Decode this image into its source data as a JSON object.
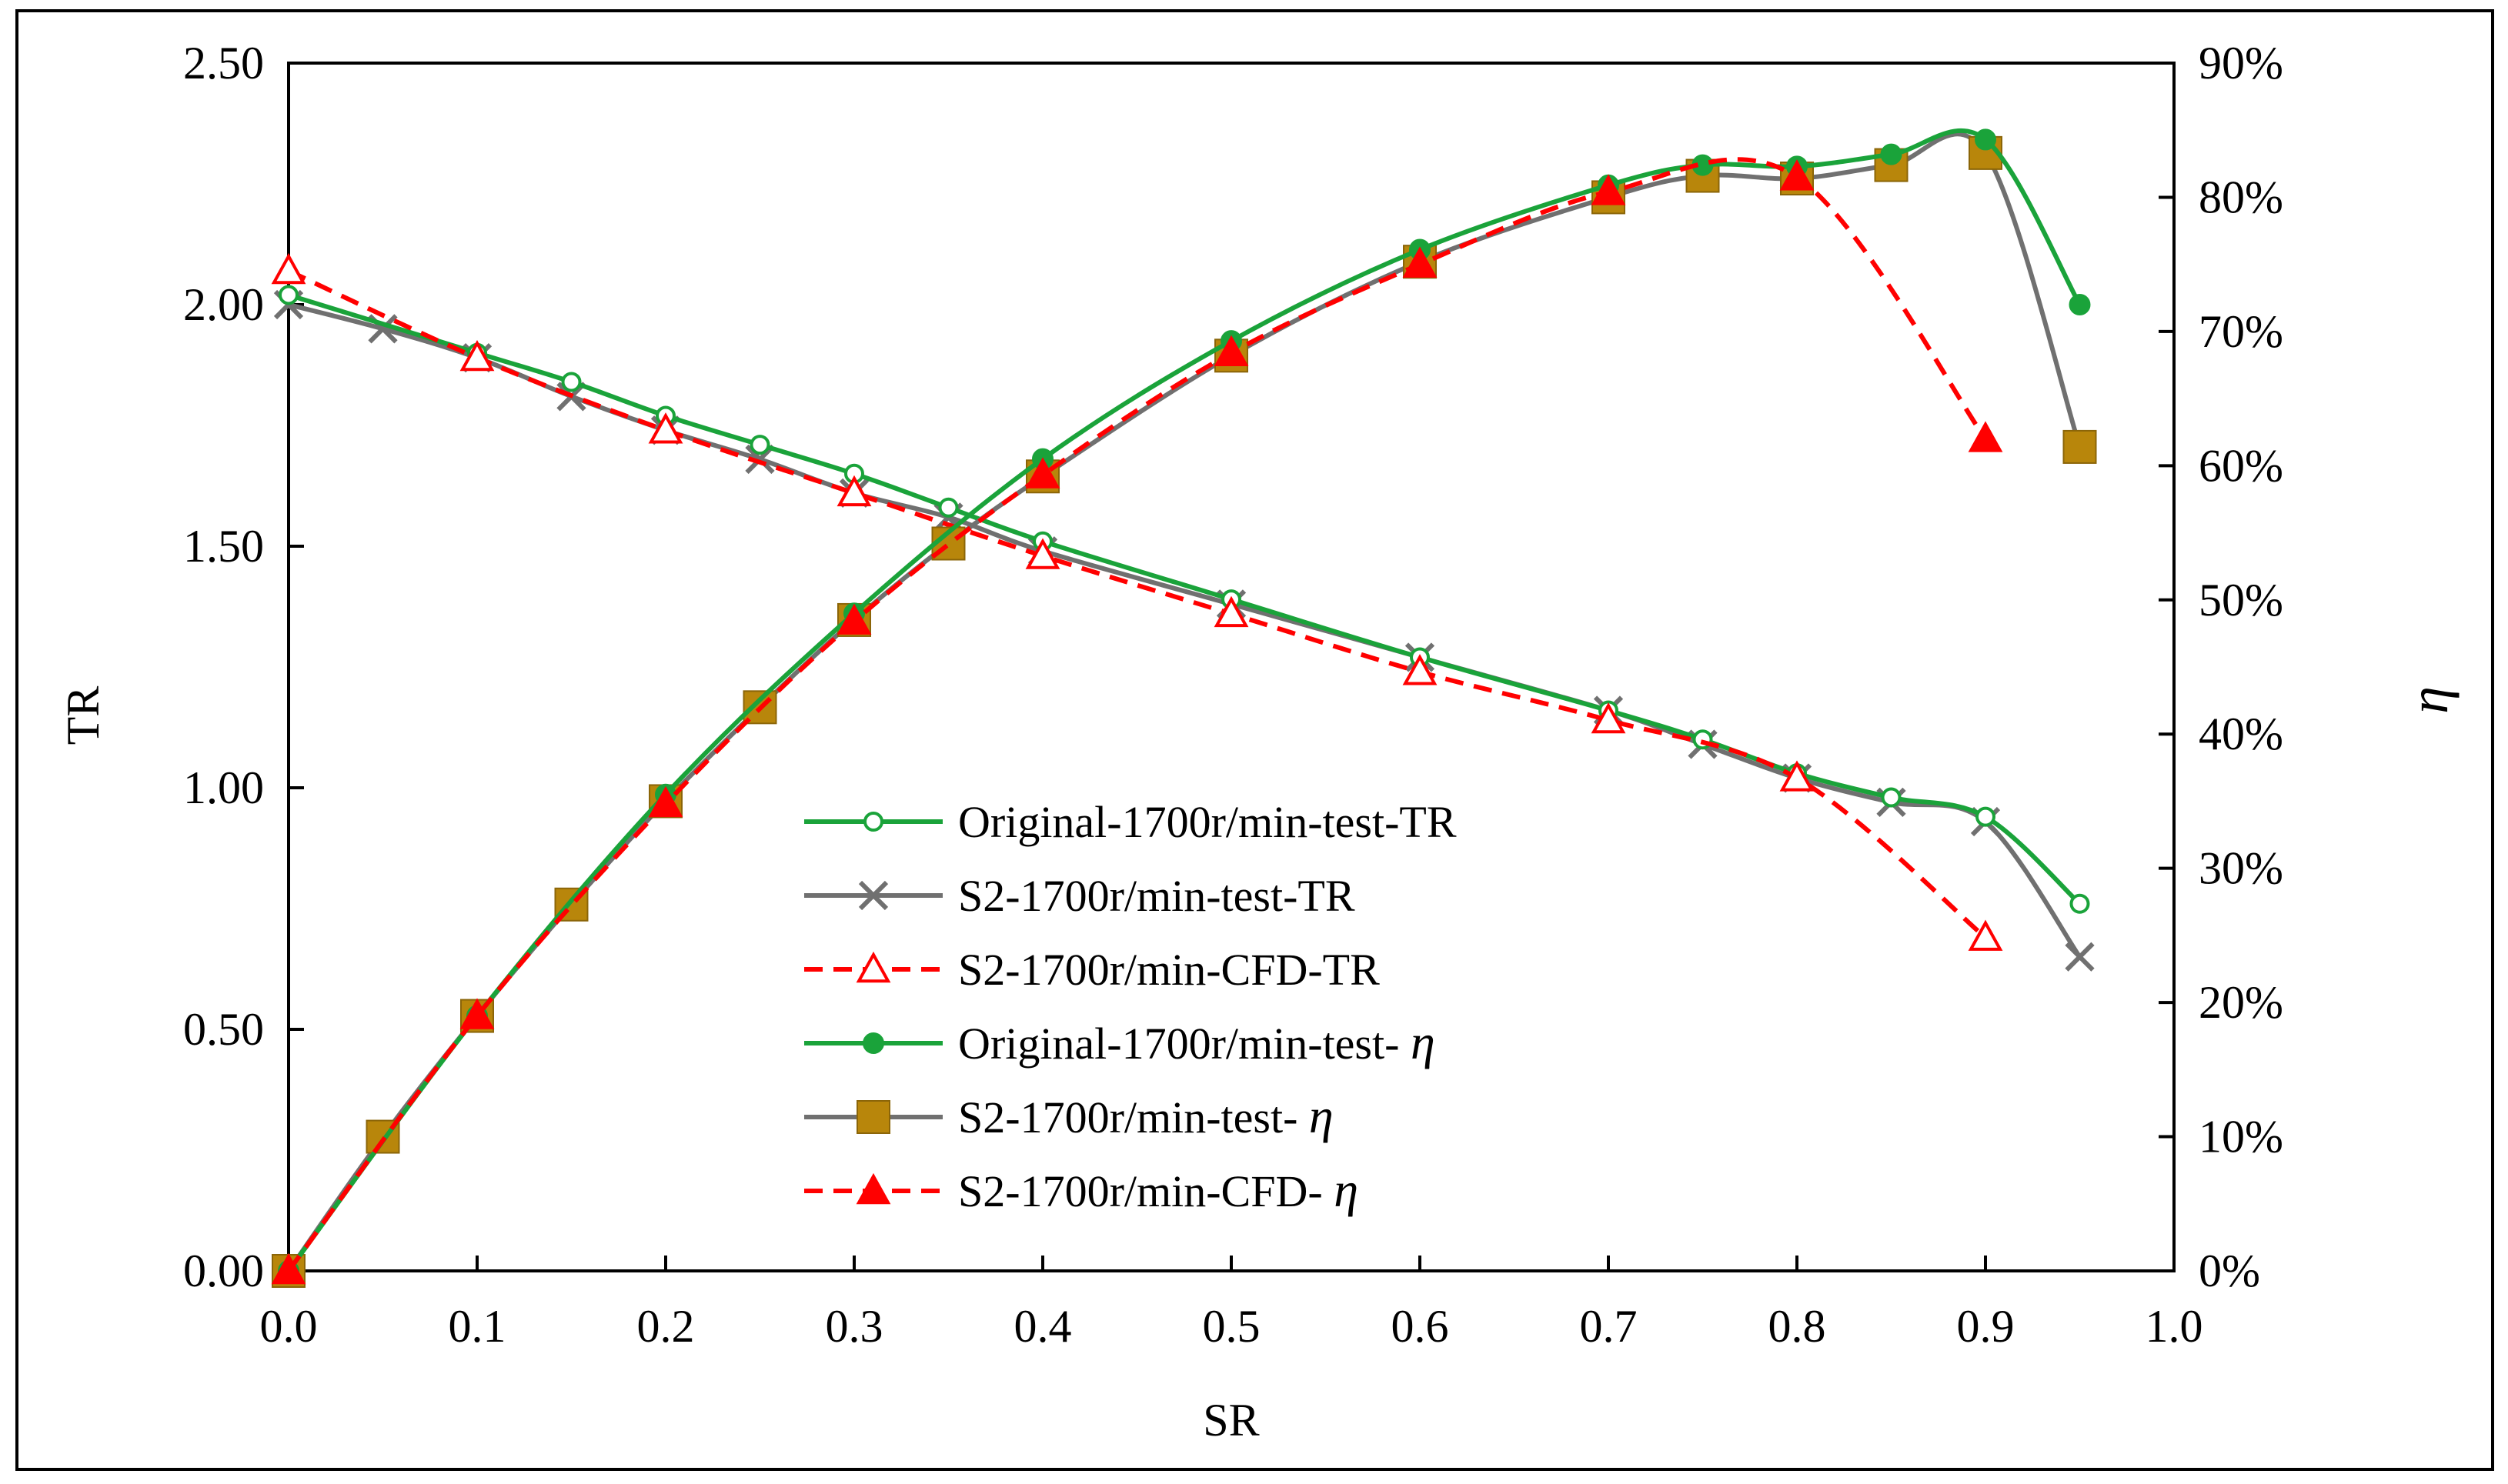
{
  "chart_data": {
    "type": "line",
    "title": "",
    "xlabel": "SR",
    "ylabel": "TR",
    "y2label": "η",
    "xlim": [
      0.0,
      1.0
    ],
    "ylim": [
      0.0,
      2.5
    ],
    "y2lim": [
      0,
      90
    ],
    "x_ticks": [
      "0.0",
      "0.1",
      "0.2",
      "0.3",
      "0.4",
      "0.5",
      "0.6",
      "0.7",
      "0.8",
      "0.9",
      "1.0"
    ],
    "y_ticks": [
      "0.00",
      "0.50",
      "1.00",
      "1.50",
      "2.00",
      "2.50"
    ],
    "y2_ticks": [
      "0%",
      "10%",
      "20%",
      "30%",
      "40%",
      "50%",
      "60%",
      "70%",
      "80%",
      "90%"
    ],
    "grid": false,
    "legend_position": "center-bottom",
    "series": [
      {
        "name": "Original-1700r/min-test-TR",
        "legend_text": "Original-1700r/min-test-TR",
        "legend_eta": "",
        "axis": "left",
        "color": "#1aa33a",
        "dash": "solid",
        "marker": "open-circle",
        "x": [
          0.0,
          0.1,
          0.15,
          0.2,
          0.25,
          0.3,
          0.35,
          0.4,
          0.5,
          0.6,
          0.7,
          0.75,
          0.8,
          0.85,
          0.9,
          0.95
        ],
        "values": [
          2.02,
          1.9,
          1.84,
          1.77,
          1.71,
          1.65,
          1.58,
          1.51,
          1.39,
          1.27,
          1.16,
          1.1,
          1.03,
          0.98,
          0.94,
          0.76
        ]
      },
      {
        "name": "S2-1700r/min-test-TR",
        "legend_text": "S2-1700r/min-test-TR",
        "legend_eta": "",
        "axis": "left",
        "color": "#707070",
        "dash": "solid",
        "marker": "x",
        "x": [
          0.0,
          0.05,
          0.1,
          0.15,
          0.2,
          0.25,
          0.3,
          0.35,
          0.4,
          0.5,
          0.6,
          0.7,
          0.75,
          0.8,
          0.85,
          0.9,
          0.95
        ],
        "values": [
          2.0,
          1.95,
          1.89,
          1.81,
          1.74,
          1.68,
          1.61,
          1.56,
          1.49,
          1.38,
          1.27,
          1.16,
          1.09,
          1.02,
          0.97,
          0.93,
          0.65
        ]
      },
      {
        "name": "S2-1700r/min-CFD-TR",
        "legend_text": "S2-1700r/min-CFD-TR",
        "legend_eta": "",
        "axis": "left",
        "color": "#ff0000",
        "dash": "dashed",
        "marker": "open-triangle",
        "x": [
          0.0,
          0.1,
          0.2,
          0.3,
          0.4,
          0.5,
          0.6,
          0.7,
          0.8,
          0.9
        ],
        "values": [
          2.07,
          1.89,
          1.74,
          1.61,
          1.48,
          1.36,
          1.24,
          1.14,
          1.02,
          0.69
        ]
      },
      {
        "name": "Original-1700r/min-test-η",
        "legend_text": "Original-1700r/min-test- ",
        "legend_eta": "η",
        "axis": "right",
        "color": "#1aa33a",
        "dash": "solid",
        "marker": "filled-circle",
        "x": [
          0.0,
          0.1,
          0.2,
          0.3,
          0.4,
          0.5,
          0.6,
          0.7,
          0.75,
          0.8,
          0.85,
          0.9,
          0.95
        ],
        "values": [
          0,
          19,
          35.5,
          49,
          60.5,
          69.3,
          76.1,
          80.9,
          82.4,
          82.3,
          83.2,
          84.3,
          72
        ]
      },
      {
        "name": "S2-1700r/min-test-η",
        "legend_text": "S2-1700r/min-test- ",
        "legend_eta": "η",
        "axis": "right",
        "color": "#707070",
        "marker_color": "#b8860b",
        "dash": "solid",
        "marker": "filled-square",
        "x": [
          0.0,
          0.05,
          0.1,
          0.15,
          0.2,
          0.25,
          0.3,
          0.35,
          0.4,
          0.5,
          0.6,
          0.7,
          0.75,
          0.8,
          0.85,
          0.9,
          0.95
        ],
        "values": [
          0,
          10,
          19,
          27.3,
          35,
          42,
          48.5,
          54.2,
          59.2,
          68.2,
          75.2,
          80,
          81.6,
          81.4,
          82.4,
          83.3,
          61.4
        ]
      },
      {
        "name": "S2-1700r/min-CFD-η",
        "legend_text": "S2-1700r/min-CFD- ",
        "legend_eta": "η",
        "axis": "right",
        "color": "#ff0000",
        "dash": "dashed",
        "marker": "filled-triangle",
        "x": [
          0.0,
          0.1,
          0.2,
          0.3,
          0.4,
          0.5,
          0.6,
          0.7,
          0.8,
          0.9
        ],
        "values": [
          0,
          19,
          34.8,
          48.4,
          59.3,
          68.4,
          75,
          80.4,
          81.5,
          62
        ]
      }
    ]
  }
}
